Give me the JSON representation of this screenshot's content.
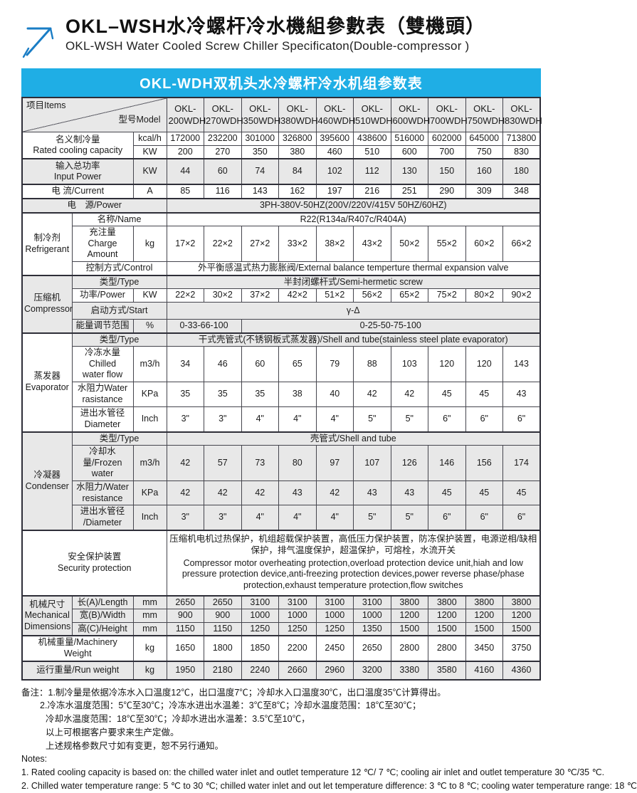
{
  "masthead": {
    "title_zh": "OKL–WSH水冷螺杆冷水機組參數表（雙機頭）",
    "title_en": "OKL-WSH Water Cooled Screw Chiller Specificaton(Double-compressor )",
    "logo_icon": "arrow-up-right-icon",
    "logo_color": "#1A7DC5"
  },
  "band": {
    "text": "OKL-WDH双机头水冷螺杆冷水机组参数表",
    "color": "#1FAEE5"
  },
  "table": {
    "corner": {
      "items_label": "项目Items",
      "model_label": "型号Model"
    },
    "model_prefix": "OKL-",
    "models": [
      "200WDH",
      "270WDH",
      "350WDH",
      "380WDH",
      "460WDH",
      "510WDH",
      "600WDH",
      "700WDH",
      "750WDH",
      "830WDH"
    ],
    "groups": {
      "refrigerant": "制冷剂\nRefrigerant",
      "compressor": "压缩机\nCompressor",
      "evaporator": "蒸发器\nEvaporator",
      "condenser": "冷凝器\nCondenser",
      "mechanical": "机械尺寸\nMechanical\nDimensions"
    },
    "rows": [
      {
        "id": "rated_kcal",
        "label": "名义制冷量\nRated cooling capacity",
        "unit": "kcal/h",
        "values": [
          "172000",
          "232200",
          "301000",
          "326800",
          "395600",
          "438600",
          "516000",
          "602000",
          "645000",
          "713800"
        ]
      },
      {
        "id": "rated_kw",
        "unit": "KW",
        "values": [
          "200",
          "270",
          "350",
          "380",
          "460",
          "510",
          "600",
          "700",
          "750",
          "830"
        ]
      },
      {
        "id": "input_power",
        "label": "输入总功率\nInput Power",
        "unit": "KW",
        "values": [
          "44",
          "60",
          "74",
          "84",
          "102",
          "112",
          "130",
          "150",
          "160",
          "180"
        ]
      },
      {
        "id": "current",
        "label": "电  流/Current",
        "unit": "A",
        "values": [
          "85",
          "116",
          "143",
          "162",
          "197",
          "216",
          "251",
          "290",
          "309",
          "348"
        ]
      },
      {
        "id": "power_source",
        "label": "电　源/Power",
        "merged": "3PH-380V-50HZ(200V/220V/415V  50HZ/60HZ)"
      },
      {
        "id": "refrig_name",
        "group": "refrigerant",
        "label": "名称/Name",
        "merged": "R22(R134a/R407c/R404A)"
      },
      {
        "id": "refrig_charge",
        "label": "充注量\nCharge Amount",
        "unit": "kg",
        "values": [
          "17×2",
          "22×2",
          "27×2",
          "33×2",
          "38×2",
          "43×2",
          "50×2",
          "55×2",
          "60×2",
          "66×2"
        ]
      },
      {
        "id": "refrig_control",
        "label": "控制方式/Control",
        "merged": "外平衡感温式热力膨胀阀/External balance temperture thermal expansion valve"
      },
      {
        "id": "comp_type",
        "group": "compressor",
        "label": "类型/Type",
        "merged": "半封闭螺杆式/Semi-hermetic screw"
      },
      {
        "id": "comp_power",
        "label": "功率/Power",
        "unit": "KW",
        "values": [
          "22×2",
          "30×2",
          "37×2",
          "42×2",
          "51×2",
          "56×2",
          "65×2",
          "75×2",
          "80×2",
          "90×2"
        ]
      },
      {
        "id": "comp_start",
        "label": "启动方式/Start",
        "merged": "γ-Δ"
      },
      {
        "id": "comp_energy",
        "label": "能量调节范围",
        "unit": "%",
        "split": [
          {
            "text": "0-33-66-100",
            "span": 2
          },
          {
            "text": "0-25-50-75-100",
            "span": 8
          }
        ]
      },
      {
        "id": "evap_type",
        "group": "evaporator",
        "label": "类型/Type",
        "merged": "干式壳管式(不锈钢板式蒸发器)/Shell and tube(stainless steel plate evaporator)"
      },
      {
        "id": "evap_flow",
        "label": "冷冻水量Chilled\nwater flow",
        "unit": "m3/h",
        "values": [
          "34",
          "46",
          "60",
          "65",
          "79",
          "88",
          "103",
          "120",
          "120",
          "143"
        ]
      },
      {
        "id": "evap_resistance",
        "label": "水阻力Water\nrasistance",
        "unit": "KPa",
        "values": [
          "35",
          "35",
          "35",
          "38",
          "40",
          "42",
          "42",
          "45",
          "45",
          "43"
        ]
      },
      {
        "id": "evap_diameter",
        "label": "进出水管径\nDiameter",
        "unit": "Inch",
        "values": [
          "3\"",
          "3\"",
          "4\"",
          "4\"",
          "4\"",
          "5\"",
          "5\"",
          "6\"",
          "6\"",
          "6\""
        ]
      },
      {
        "id": "cond_type",
        "group": "condenser",
        "label": "类型/Type",
        "merged": "壳管式/Shell and tube"
      },
      {
        "id": "cond_flow",
        "label": "冷却水量/Frozen\nwater",
        "unit": "m3/h",
        "values": [
          "42",
          "57",
          "73",
          "80",
          "97",
          "107",
          "126",
          "146",
          "156",
          "174"
        ]
      },
      {
        "id": "cond_resistance",
        "label": "水阻力/Water\nresistance",
        "unit": "KPa",
        "values": [
          "42",
          "42",
          "42",
          "43",
          "42",
          "43",
          "43",
          "45",
          "45",
          "45"
        ]
      },
      {
        "id": "cond_diameter",
        "label": "进出水管径\n/Diameter",
        "unit": "Inch",
        "values": [
          "3\"",
          "3\"",
          "4\"",
          "4\"",
          "4\"",
          "5\"",
          "5\"",
          "6\"",
          "6\"",
          "6\""
        ]
      },
      {
        "id": "security",
        "label": "安全保护装置\nSecurity protection",
        "merged_zh": "压缩机电机过热保护，机组超载保护装置，高低压力保护装置，防冻保护装置，电源逆相/缺相保护，排气温度保护，超温保护，可熔栓，水流开关",
        "merged_en": "Compressor motor overheating protection,overload protection device unit,hiah and low pressure protection device,anti-freezing protection devices,power reverse phase/phase protection,exhaust temperature protection,flow switches"
      },
      {
        "id": "mech_length",
        "group": "mechanical",
        "label": "长(A)/Length",
        "unit": "mm",
        "values": [
          "2650",
          "2650",
          "3100",
          "3100",
          "3100",
          "3100",
          "3800",
          "3800",
          "3800",
          "3800"
        ]
      },
      {
        "id": "mech_width",
        "label": "宽(B)/Width",
        "unit": "mm",
        "values": [
          "900",
          "900",
          "1000",
          "1000",
          "1000",
          "1000",
          "1200",
          "1200",
          "1200",
          "1200"
        ]
      },
      {
        "id": "mech_height",
        "label": "高(C)/Height",
        "unit": "mm",
        "values": [
          "1150",
          "1150",
          "1250",
          "1250",
          "1250",
          "1350",
          "1500",
          "1500",
          "1500",
          "1500"
        ]
      },
      {
        "id": "machinery_weight",
        "label": "机械重量/Machinery Weight",
        "unit": "kg",
        "values": [
          "1650",
          "1800",
          "1850",
          "2200",
          "2450",
          "2650",
          "2800",
          "2800",
          "3450",
          "3750"
        ]
      },
      {
        "id": "run_weight",
        "label": "运行重量/Run weight",
        "unit": "kg",
        "values": [
          "1950",
          "2180",
          "2240",
          "2660",
          "2960",
          "3200",
          "3380",
          "3580",
          "4160",
          "4360"
        ]
      }
    ]
  },
  "notes": {
    "zh_lines": [
      "备注：1.制冷量是依据冷冻水入口温度12℃，出口温度7℃；冷却水入口温度30℃，出口温度35℃计算得出。",
      "2.冷冻水温度范围：5℃至30℃；冷冻水进出水温差：3℃至8℃；冷却水温度范围：18℃至30℃；",
      "冷却水温度范围：18℃至30℃；冷却水进出水温差：3.5℃至10℃，",
      "以上可根据客户要求来生产定做。",
      "上述规格参数尺寸如有变更，恕不另行通知。"
    ],
    "en_lines": [
      "Notes:",
      "1. Rated cooling capacity is based on: the chilled water inlet and outlet temperature 12 ℃/ 7 ℃; cooling air inlet and outlet temperature 30 ℃/35 ℃.",
      "2. Chilled water temperature range: 5 ℃ to 30 ℃; chilled water inlet and out let temperature difference: 3 ℃ to 8 ℃; cooling water temperature range: 18 ℃"
    ]
  }
}
